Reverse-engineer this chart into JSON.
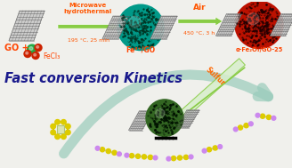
{
  "bg_color": "#f0f0ec",
  "title_text": "Fast conversion Kinetics",
  "title_color": "#1a1a8c",
  "title_fontsize": 10.5,
  "top_arrow_label": "Microwave\nhydrothermal",
  "top_arrow_label2": "195 °C, 25 min",
  "top_arrow_label_color": "#ff5500",
  "right_arrow_label": "Air",
  "right_arrow_label2": "450 °C, 3 h",
  "right_arrow_label_color": "#ff5500",
  "go_label": "GO +",
  "go_label_color": "#ff4400",
  "fecl_label": "FeCl₃",
  "fecl_label_color": "#ff4400",
  "fe_go_label": "Fe³⁺/GO",
  "fe_go_label_color": "#ff4400",
  "product_label": "α-Fe₂O₃/GO-25",
  "product_label_color": "#ff4400",
  "sulfur_label": "Sulfur",
  "sulfur_label_color": "#ff6600",
  "arrow_green": "#88cc44",
  "arrow_light": "#99ccbb",
  "graphene_face": "#c8c8c8",
  "graphene_edge": "#888888",
  "graphene_line": "#555555",
  "ball_teal_base": "#009988",
  "ball_teal_dot": "#003322",
  "ball_red_base": "#bb1100",
  "ball_red_dot": "#220000",
  "ball_green_base": "#336622",
  "ball_green_dot": "#001100",
  "sulfur_color": "#ddcc00",
  "lithium_color": "#cc88ee",
  "fe_red": "#cc2200",
  "fe_green": "#22aa44"
}
